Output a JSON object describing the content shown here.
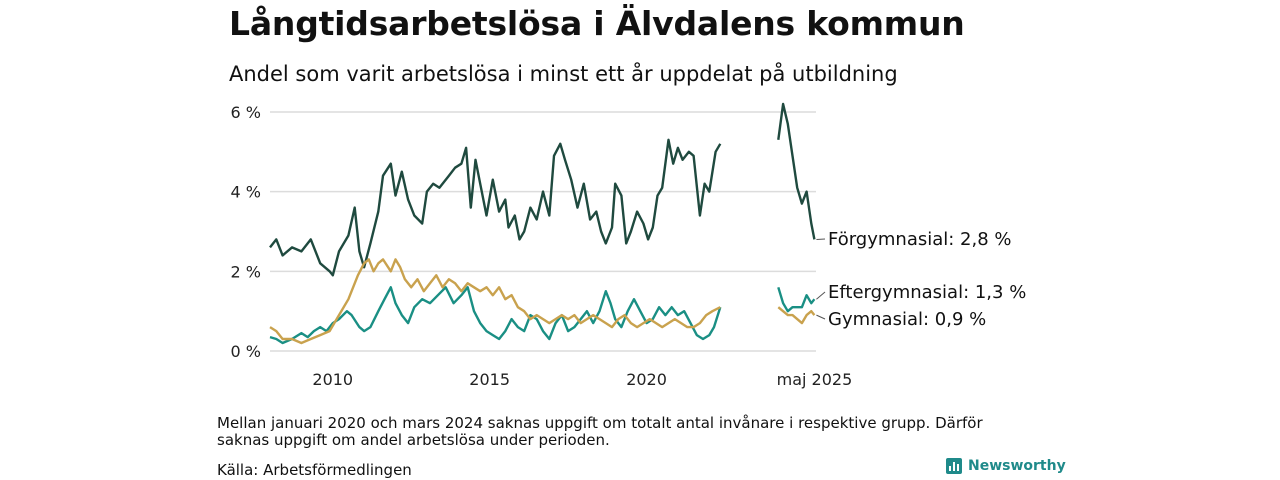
{
  "title": "Långtidsarbetslösa i Älvdalens kommun",
  "subtitle": "Andel som varit arbetslösa i minst ett år uppdelat på utbildning",
  "note": "Mellan januari 2020 och mars 2024 saknas uppgift om totalt antal invånare i respektive grupp. Därför saknas uppgift om andel arbetslösa under perioden.",
  "source": "Källa: Arbetsförmedlingen",
  "brand": {
    "name": "Newsworthy",
    "icon": "bar-chart-icon",
    "color": "#1f8a8a"
  },
  "chart_data": {
    "type": "line",
    "x_unit": "decimal year",
    "ylim": [
      0,
      6.3
    ],
    "y_ticks": [
      0,
      2,
      4,
      6
    ],
    "y_tick_labels": [
      "0 %",
      "2 %",
      "4 %",
      "6 %"
    ],
    "x_ticks": [
      2010,
      2015,
      2020,
      2025.35
    ],
    "x_tick_labels": [
      "2010",
      "2015",
      "2020",
      "maj 2025"
    ],
    "grid": "horizontal",
    "series": [
      {
        "name": "Förgymnasial",
        "end_label": "Förgymnasial: 2,8 %",
        "color": "#1f4a3f",
        "segments": [
          [
            [
              2008.0,
              2.6
            ],
            [
              2008.2,
              2.8
            ],
            [
              2008.4,
              2.4
            ],
            [
              2008.7,
              2.6
            ],
            [
              2009.0,
              2.5
            ],
            [
              2009.3,
              2.8
            ],
            [
              2009.6,
              2.2
            ],
            [
              2009.9,
              2.0
            ],
            [
              2010.0,
              1.9
            ],
            [
              2010.2,
              2.5
            ],
            [
              2010.5,
              2.9
            ],
            [
              2010.7,
              3.6
            ],
            [
              2010.85,
              2.5
            ],
            [
              2011.0,
              2.1
            ],
            [
              2011.2,
              2.7
            ],
            [
              2011.45,
              3.5
            ],
            [
              2011.6,
              4.4
            ],
            [
              2011.85,
              4.7
            ],
            [
              2012.0,
              3.9
            ],
            [
              2012.2,
              4.5
            ],
            [
              2012.4,
              3.8
            ],
            [
              2012.6,
              3.4
            ],
            [
              2012.85,
              3.2
            ],
            [
              2013.0,
              4.0
            ],
            [
              2013.2,
              4.2
            ],
            [
              2013.4,
              4.1
            ],
            [
              2013.7,
              4.4
            ],
            [
              2013.9,
              4.6
            ],
            [
              2014.1,
              4.7
            ],
            [
              2014.25,
              5.1
            ],
            [
              2014.4,
              3.6
            ],
            [
              2014.55,
              4.8
            ],
            [
              2014.7,
              4.2
            ],
            [
              2014.9,
              3.4
            ],
            [
              2015.1,
              4.3
            ],
            [
              2015.3,
              3.5
            ],
            [
              2015.5,
              3.8
            ],
            [
              2015.6,
              3.1
            ],
            [
              2015.8,
              3.4
            ],
            [
              2015.95,
              2.8
            ],
            [
              2016.1,
              3.0
            ],
            [
              2016.3,
              3.6
            ],
            [
              2016.5,
              3.3
            ],
            [
              2016.7,
              4.0
            ],
            [
              2016.9,
              3.4
            ],
            [
              2017.05,
              4.9
            ],
            [
              2017.25,
              5.2
            ],
            [
              2017.4,
              4.8
            ],
            [
              2017.6,
              4.3
            ],
            [
              2017.8,
              3.6
            ],
            [
              2018.0,
              4.2
            ],
            [
              2018.2,
              3.3
            ],
            [
              2018.4,
              3.5
            ],
            [
              2018.55,
              3.0
            ],
            [
              2018.7,
              2.7
            ],
            [
              2018.9,
              3.1
            ],
            [
              2019.0,
              4.2
            ],
            [
              2019.2,
              3.9
            ],
            [
              2019.35,
              2.7
            ],
            [
              2019.5,
              3.0
            ],
            [
              2019.7,
              3.5
            ],
            [
              2019.9,
              3.2
            ],
            [
              2020.05,
              2.8
            ],
            [
              2020.2,
              3.1
            ],
            [
              2020.35,
              3.9
            ],
            [
              2020.5,
              4.1
            ],
            [
              2020.7,
              5.3
            ],
            [
              2020.85,
              4.7
            ],
            [
              2021.0,
              5.1
            ],
            [
              2021.15,
              4.8
            ],
            [
              2021.35,
              5.0
            ],
            [
              2021.5,
              4.9
            ],
            [
              2021.7,
              3.4
            ],
            [
              2021.85,
              4.2
            ],
            [
              2022.0,
              4.0
            ],
            [
              2022.2,
              5.0
            ],
            [
              2022.35,
              5.2
            ]
          ],
          [
            [
              2024.2,
              5.3
            ],
            [
              2024.35,
              6.2
            ],
            [
              2024.5,
              5.7
            ],
            [
              2024.65,
              4.9
            ],
            [
              2024.8,
              4.1
            ],
            [
              2024.95,
              3.7
            ],
            [
              2025.1,
              4.0
            ],
            [
              2025.25,
              3.2
            ],
            [
              2025.35,
              2.8
            ]
          ]
        ]
      },
      {
        "name": "Eftergymnasial",
        "end_label": "Eftergymnasial: 1,3 %",
        "color": "#1a8f84",
        "segments": [
          [
            [
              2008.0,
              0.35
            ],
            [
              2008.2,
              0.3
            ],
            [
              2008.4,
              0.2
            ],
            [
              2008.7,
              0.3
            ],
            [
              2009.0,
              0.45
            ],
            [
              2009.2,
              0.35
            ],
            [
              2009.4,
              0.5
            ],
            [
              2009.6,
              0.6
            ],
            [
              2009.8,
              0.5
            ],
            [
              2010.0,
              0.7
            ],
            [
              2010.2,
              0.8
            ],
            [
              2010.45,
              1.0
            ],
            [
              2010.6,
              0.9
            ],
            [
              2010.85,
              0.6
            ],
            [
              2011.0,
              0.5
            ],
            [
              2011.2,
              0.6
            ],
            [
              2011.45,
              1.0
            ],
            [
              2011.65,
              1.3
            ],
            [
              2011.85,
              1.6
            ],
            [
              2012.0,
              1.2
            ],
            [
              2012.2,
              0.9
            ],
            [
              2012.4,
              0.7
            ],
            [
              2012.6,
              1.1
            ],
            [
              2012.85,
              1.3
            ],
            [
              2013.1,
              1.2
            ],
            [
              2013.35,
              1.4
            ],
            [
              2013.6,
              1.6
            ],
            [
              2013.85,
              1.2
            ],
            [
              2014.1,
              1.4
            ],
            [
              2014.3,
              1.6
            ],
            [
              2014.5,
              1.0
            ],
            [
              2014.7,
              0.7
            ],
            [
              2014.9,
              0.5
            ],
            [
              2015.1,
              0.4
            ],
            [
              2015.3,
              0.3
            ],
            [
              2015.5,
              0.5
            ],
            [
              2015.7,
              0.8
            ],
            [
              2015.9,
              0.6
            ],
            [
              2016.1,
              0.5
            ],
            [
              2016.3,
              0.9
            ],
            [
              2016.5,
              0.8
            ],
            [
              2016.7,
              0.5
            ],
            [
              2016.9,
              0.3
            ],
            [
              2017.1,
              0.7
            ],
            [
              2017.3,
              0.9
            ],
            [
              2017.5,
              0.5
            ],
            [
              2017.7,
              0.6
            ],
            [
              2017.9,
              0.8
            ],
            [
              2018.1,
              1.0
            ],
            [
              2018.3,
              0.7
            ],
            [
              2018.5,
              1.0
            ],
            [
              2018.7,
              1.5
            ],
            [
              2018.85,
              1.2
            ],
            [
              2019.0,
              0.8
            ],
            [
              2019.2,
              0.6
            ],
            [
              2019.4,
              1.0
            ],
            [
              2019.6,
              1.3
            ],
            [
              2019.8,
              1.0
            ],
            [
              2020.0,
              0.7
            ],
            [
              2020.2,
              0.8
            ],
            [
              2020.4,
              1.1
            ],
            [
              2020.6,
              0.9
            ],
            [
              2020.8,
              1.1
            ],
            [
              2021.0,
              0.9
            ],
            [
              2021.2,
              1.0
            ],
            [
              2021.4,
              0.7
            ],
            [
              2021.6,
              0.4
            ],
            [
              2021.8,
              0.3
            ],
            [
              2022.0,
              0.4
            ],
            [
              2022.15,
              0.6
            ],
            [
              2022.35,
              1.1
            ]
          ],
          [
            [
              2024.2,
              1.6
            ],
            [
              2024.35,
              1.2
            ],
            [
              2024.5,
              1.0
            ],
            [
              2024.65,
              1.1
            ],
            [
              2024.8,
              1.1
            ],
            [
              2024.95,
              1.1
            ],
            [
              2025.1,
              1.4
            ],
            [
              2025.25,
              1.2
            ],
            [
              2025.35,
              1.3
            ]
          ]
        ]
      },
      {
        "name": "Gymnasial",
        "end_label": "Gymnasial: 0,9 %",
        "color": "#c9a24e",
        "segments": [
          [
            [
              2008.0,
              0.6
            ],
            [
              2008.2,
              0.5
            ],
            [
              2008.4,
              0.3
            ],
            [
              2008.7,
              0.3
            ],
            [
              2009.0,
              0.2
            ],
            [
              2009.3,
              0.3
            ],
            [
              2009.6,
              0.4
            ],
            [
              2009.9,
              0.5
            ],
            [
              2010.2,
              0.9
            ],
            [
              2010.5,
              1.3
            ],
            [
              2010.8,
              1.9
            ],
            [
              2011.0,
              2.2
            ],
            [
              2011.15,
              2.3
            ],
            [
              2011.3,
              2.0
            ],
            [
              2011.45,
              2.2
            ],
            [
              2011.6,
              2.3
            ],
            [
              2011.85,
              2.0
            ],
            [
              2012.0,
              2.3
            ],
            [
              2012.15,
              2.1
            ],
            [
              2012.3,
              1.8
            ],
            [
              2012.5,
              1.6
            ],
            [
              2012.7,
              1.8
            ],
            [
              2012.9,
              1.5
            ],
            [
              2013.1,
              1.7
            ],
            [
              2013.3,
              1.9
            ],
            [
              2013.5,
              1.6
            ],
            [
              2013.7,
              1.8
            ],
            [
              2013.9,
              1.7
            ],
            [
              2014.1,
              1.5
            ],
            [
              2014.3,
              1.7
            ],
            [
              2014.5,
              1.6
            ],
            [
              2014.7,
              1.5
            ],
            [
              2014.9,
              1.6
            ],
            [
              2015.1,
              1.4
            ],
            [
              2015.3,
              1.6
            ],
            [
              2015.5,
              1.3
            ],
            [
              2015.7,
              1.4
            ],
            [
              2015.9,
              1.1
            ],
            [
              2016.1,
              1.0
            ],
            [
              2016.3,
              0.8
            ],
            [
              2016.5,
              0.9
            ],
            [
              2016.7,
              0.8
            ],
            [
              2016.9,
              0.7
            ],
            [
              2017.1,
              0.8
            ],
            [
              2017.3,
              0.9
            ],
            [
              2017.5,
              0.8
            ],
            [
              2017.7,
              0.9
            ],
            [
              2017.9,
              0.7
            ],
            [
              2018.1,
              0.8
            ],
            [
              2018.3,
              0.9
            ],
            [
              2018.5,
              0.8
            ],
            [
              2018.7,
              0.7
            ],
            [
              2018.9,
              0.6
            ],
            [
              2019.1,
              0.8
            ],
            [
              2019.3,
              0.9
            ],
            [
              2019.5,
              0.7
            ],
            [
              2019.7,
              0.6
            ],
            [
              2019.9,
              0.7
            ],
            [
              2020.1,
              0.8
            ],
            [
              2020.3,
              0.7
            ],
            [
              2020.5,
              0.6
            ],
            [
              2020.7,
              0.7
            ],
            [
              2020.9,
              0.8
            ],
            [
              2021.1,
              0.7
            ],
            [
              2021.3,
              0.6
            ],
            [
              2021.5,
              0.6
            ],
            [
              2021.7,
              0.7
            ],
            [
              2021.9,
              0.9
            ],
            [
              2022.1,
              1.0
            ],
            [
              2022.35,
              1.1
            ]
          ],
          [
            [
              2024.2,
              1.1
            ],
            [
              2024.35,
              1.0
            ],
            [
              2024.5,
              0.9
            ],
            [
              2024.65,
              0.9
            ],
            [
              2024.8,
              0.8
            ],
            [
              2024.95,
              0.7
            ],
            [
              2025.1,
              0.9
            ],
            [
              2025.25,
              1.0
            ],
            [
              2025.35,
              0.9
            ]
          ]
        ]
      }
    ]
  }
}
